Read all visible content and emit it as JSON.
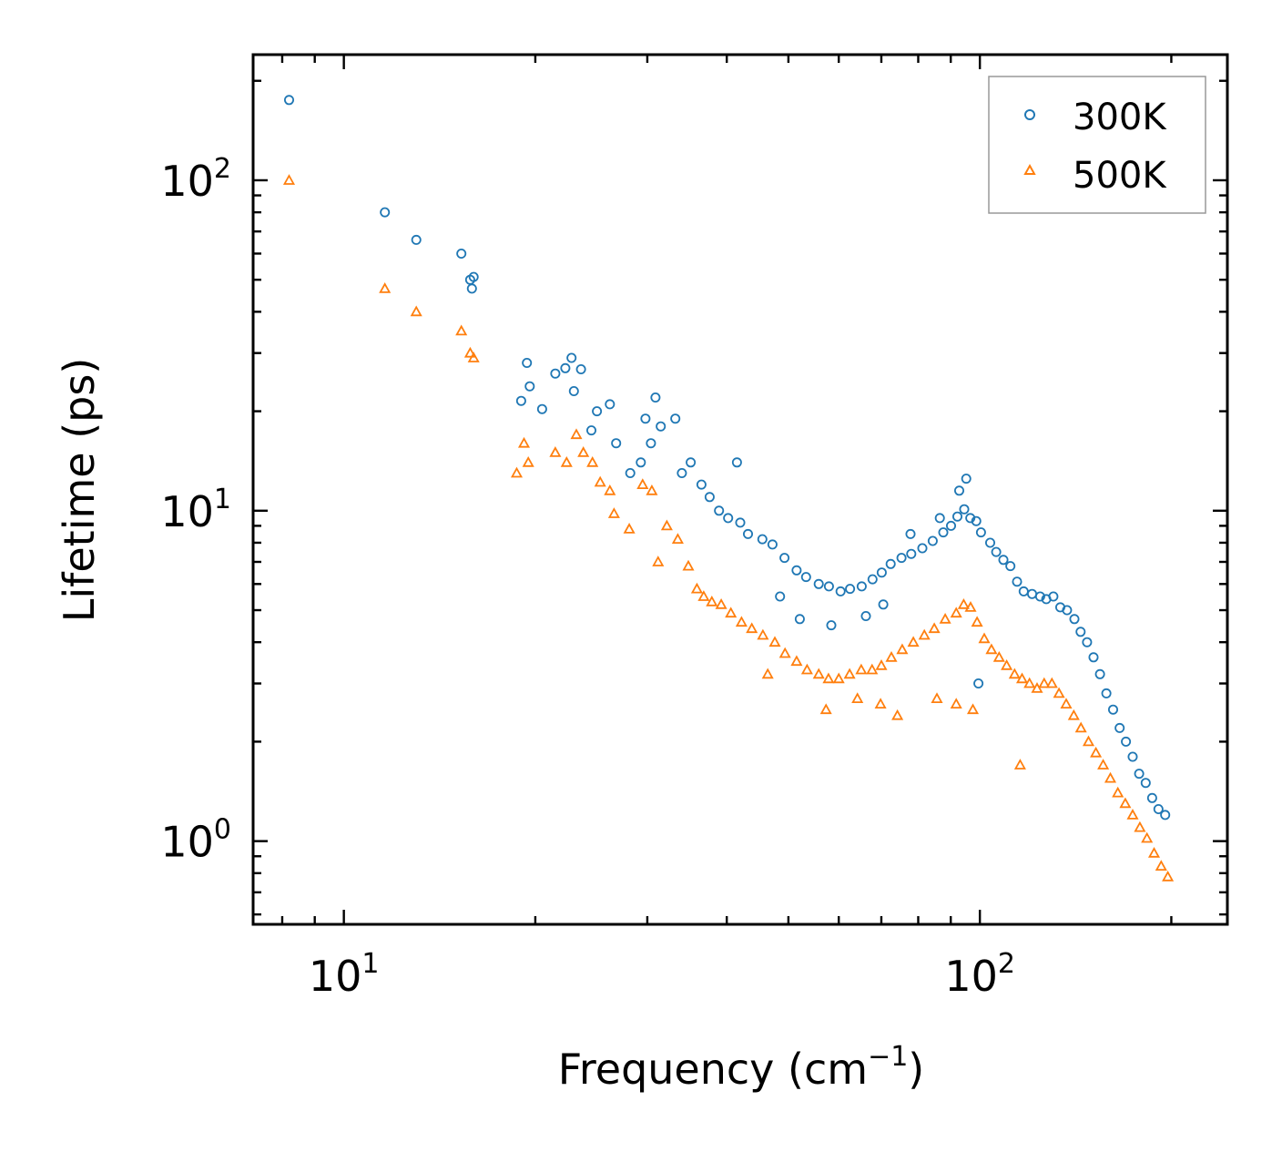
{
  "chart_data": {
    "type": "scatter",
    "title": "",
    "xlabel": "Frequency (cm",
    "xlabel_exponent": "−1",
    "xlabel_suffix": ")",
    "ylabel": "Lifetime (ps)",
    "xscale": "log",
    "yscale": "log",
    "xlim": [
      7.2,
      245
    ],
    "ylim": [
      0.56,
      240
    ],
    "x_ticks": [
      {
        "value": 10,
        "base": "10",
        "exp": "1"
      },
      {
        "value": 100,
        "base": "10",
        "exp": "2"
      }
    ],
    "y_ticks": [
      {
        "value": 1,
        "base": "10",
        "exp": "0"
      },
      {
        "value": 10,
        "base": "10",
        "exp": "1"
      },
      {
        "value": 100,
        "base": "10",
        "exp": "2"
      }
    ],
    "legend_position": "top-right",
    "series": [
      {
        "name": "300K",
        "marker": "circle",
        "color": "#1f77b4",
        "x": [
          8.2,
          11.6,
          13,
          15.3,
          15.8,
          16,
          15.9,
          19,
          19.4,
          19.6,
          20.5,
          21.5,
          22.3,
          22.8,
          23,
          23.6,
          24.5,
          25,
          26.2,
          26.8,
          28.2,
          29.3,
          29.8,
          30.4,
          30.9,
          31.5,
          33.2,
          34,
          35.1,
          36.5,
          37.6,
          38.9,
          40.2,
          41.5,
          42,
          43.2,
          45.5,
          47.2,
          49.3,
          51.5,
          53.3,
          55.8,
          57.9,
          60.4,
          62.5,
          65.2,
          67.8,
          70.1,
          72.4,
          75.3,
          78,
          81.2,
          84.3,
          87.6,
          90.1,
          92.2,
          94.5,
          96.6,
          98.7,
          100.4,
          103.8,
          106.1,
          108.9,
          111.7,
          114.4,
          117.2,
          120.8,
          124.4,
          127.2,
          130.5,
          133.8,
          137.1,
          140.8,
          144,
          147.4,
          150.9,
          154.5,
          158.1,
          162,
          165.9,
          169.7,
          173.9,
          178,
          182.3,
          186.6,
          190.9,
          195.6,
          99.5,
          95.2,
          92.8,
          86.5,
          77.8,
          70.5,
          66.2,
          58.4,
          52.1,
          48.5
        ],
        "y": [
          175,
          80,
          66,
          60,
          50,
          51,
          47,
          21.5,
          28,
          23.8,
          20.3,
          26,
          27,
          29,
          23,
          26.8,
          17.5,
          20,
          21,
          16,
          13,
          14,
          19,
          16,
          22,
          18,
          19,
          13,
          14,
          12,
          11,
          10,
          9.5,
          14,
          9.2,
          8.5,
          8.2,
          7.9,
          7.2,
          6.6,
          6.3,
          6,
          5.9,
          5.7,
          5.8,
          5.9,
          6.2,
          6.5,
          6.9,
          7.2,
          7.4,
          7.7,
          8.1,
          8.6,
          9,
          9.6,
          10.1,
          9.5,
          9.3,
          8.6,
          8,
          7.5,
          7.1,
          6.8,
          6.1,
          5.7,
          5.6,
          5.5,
          5.4,
          5.5,
          5.1,
          5,
          4.7,
          4.3,
          4,
          3.6,
          3.2,
          2.8,
          2.5,
          2.2,
          2,
          1.8,
          1.6,
          1.5,
          1.35,
          1.25,
          1.2,
          3,
          12.5,
          11.5,
          9.5,
          8.5,
          5.2,
          4.8,
          4.5,
          4.7,
          5.5
        ]
      },
      {
        "name": "500K",
        "marker": "triangle",
        "color": "#ff7f0e",
        "x": [
          8.2,
          11.6,
          13,
          15.3,
          15.8,
          16,
          18.7,
          19.2,
          19.5,
          21.5,
          22.4,
          23.2,
          23.8,
          24.6,
          25.3,
          26.2,
          26.6,
          28.1,
          29.5,
          30.5,
          31.2,
          32.2,
          33.5,
          34.8,
          35.9,
          36.8,
          37.9,
          39.2,
          40.6,
          42.2,
          43.8,
          45.6,
          47.6,
          49.4,
          51.5,
          53.5,
          55.8,
          57.8,
          60,
          62.4,
          65.1,
          67.7,
          70,
          72.6,
          75.5,
          78.6,
          81.8,
          84.8,
          88.2,
          91.8,
          94.3,
          96.7,
          99,
          101.6,
          104.3,
          107.2,
          110.2,
          113.4,
          116.5,
          119.7,
          123,
          126.2,
          129.8,
          133.2,
          136.7,
          140.5,
          144.2,
          148.2,
          152.2,
          156.3,
          160.4,
          164.8,
          169.3,
          173.9,
          178.5,
          183.1,
          187.9,
          192.8,
          197.5,
          97.5,
          91.8,
          115.7,
          85.6,
          74.2,
          69.8,
          64.2,
          57.3,
          46.4
        ],
        "y": [
          100,
          47,
          40,
          35,
          30,
          29,
          13,
          16,
          14,
          15,
          14,
          17,
          15,
          14,
          12.2,
          11.5,
          9.8,
          8.8,
          12,
          11.5,
          7,
          9,
          8.2,
          6.8,
          5.8,
          5.5,
          5.3,
          5.2,
          4.9,
          4.6,
          4.4,
          4.2,
          4,
          3.7,
          3.5,
          3.3,
          3.2,
          3.1,
          3.1,
          3.2,
          3.3,
          3.3,
          3.4,
          3.6,
          3.8,
          4,
          4.2,
          4.4,
          4.7,
          4.9,
          5.2,
          5.1,
          4.6,
          4.1,
          3.8,
          3.6,
          3.4,
          3.2,
          3.1,
          3,
          2.9,
          3,
          3,
          2.8,
          2.6,
          2.4,
          2.2,
          2,
          1.85,
          1.7,
          1.55,
          1.4,
          1.3,
          1.2,
          1.1,
          1.02,
          0.92,
          0.84,
          0.78,
          2.5,
          2.6,
          1.7,
          2.7,
          2.4,
          2.6,
          2.7,
          2.5,
          3.2
        ]
      }
    ]
  }
}
